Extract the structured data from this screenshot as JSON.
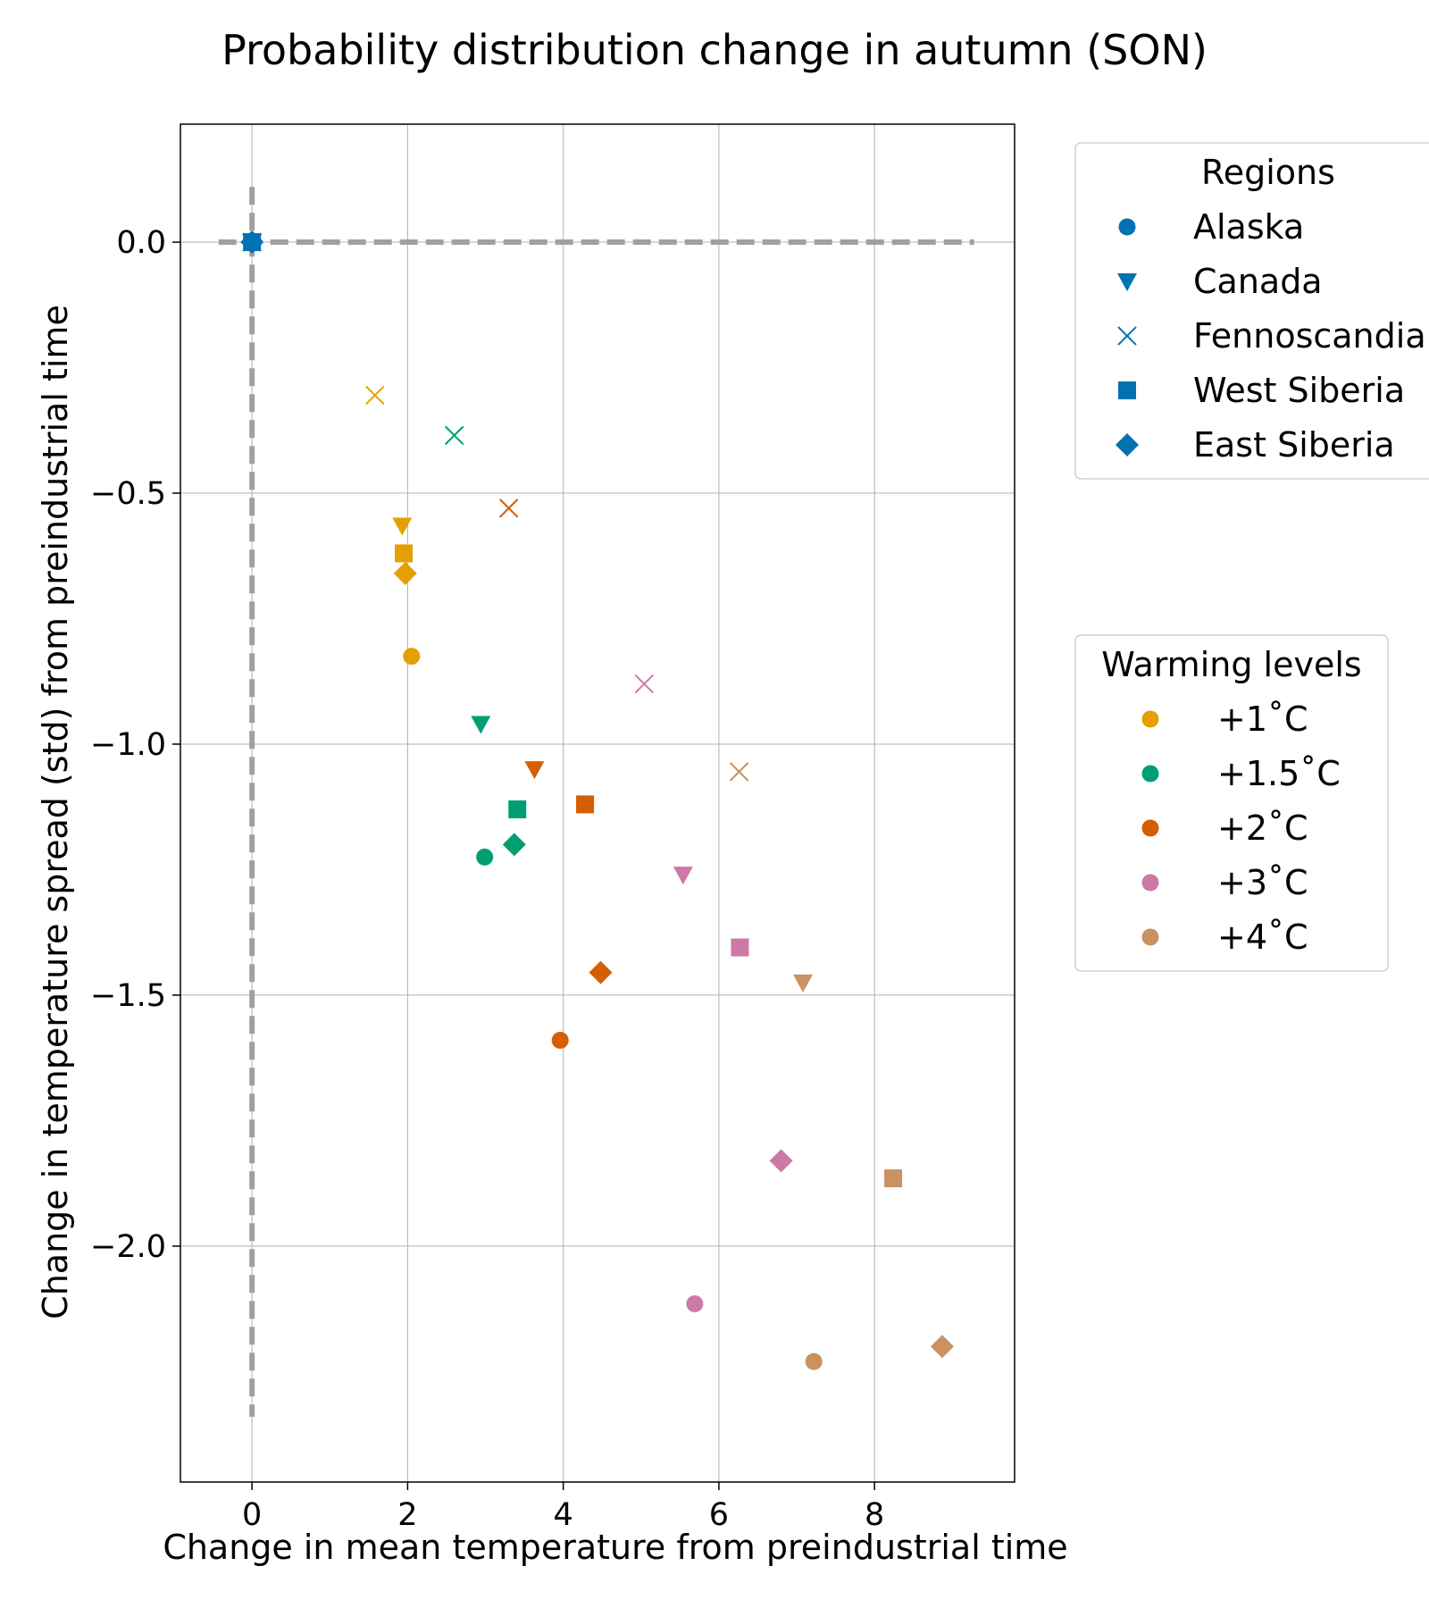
{
  "chart_data": {
    "type": "scatter",
    "title": "Probability distribution change in autumn (SON)",
    "xlabel": "Change in mean temperature from preindustrial time",
    "ylabel": "Change in temperature spread (std) from preindustrial time",
    "xlim": [
      -0.92,
      9.8
    ],
    "ylim": [
      -2.47,
      0.235
    ],
    "xticks": [
      0,
      2,
      4,
      6,
      8
    ],
    "yticks": [
      0.0,
      -0.5,
      -1.0,
      -1.5,
      -2.0
    ],
    "xtick_labels": [
      "0",
      "2",
      "4",
      "6",
      "8"
    ],
    "ytick_labels": [
      "0.0",
      "−0.5",
      "−1.0",
      "−1.5",
      "−2.0"
    ],
    "grid": true,
    "reference_lines": {
      "x": 0,
      "y": 0,
      "style": "dashed",
      "color": "#a0a0a0"
    },
    "regions_legend": {
      "title": "Regions",
      "placement": "upper-right-outside",
      "color": "#0072b2",
      "entries": [
        {
          "name": "Alaska",
          "marker": "circle"
        },
        {
          "name": "Canada",
          "marker": "triangle-down"
        },
        {
          "name": "Fennoscandia",
          "marker": "x"
        },
        {
          "name": "West Siberia",
          "marker": "square"
        },
        {
          "name": "East Siberia",
          "marker": "diamond"
        }
      ]
    },
    "levels_legend": {
      "title": "Warming levels",
      "placement": "middle-right-outside",
      "entries": [
        {
          "name": "+1˚C",
          "color": "#e69f00"
        },
        {
          "name": "+1.5˚C",
          "color": "#009e73"
        },
        {
          "name": "+2˚C",
          "color": "#d55e00"
        },
        {
          "name": "+3˚C",
          "color": "#cc79a7"
        },
        {
          "name": "+4˚C",
          "color": "#ca9161"
        }
      ]
    },
    "baseline": {
      "x": 0,
      "y": 0,
      "color": "#0072b2"
    },
    "series": [
      {
        "level": "+1˚C",
        "color": "#e69f00",
        "points": [
          {
            "region": "Alaska",
            "x": 2.05,
            "y": -0.825
          },
          {
            "region": "Canada",
            "x": 1.93,
            "y": -0.565
          },
          {
            "region": "Fennoscandia",
            "x": 1.58,
            "y": -0.305
          },
          {
            "region": "West Siberia",
            "x": 1.95,
            "y": -0.62
          },
          {
            "region": "East Siberia",
            "x": 1.97,
            "y": -0.66
          }
        ]
      },
      {
        "level": "+1.5˚C",
        "color": "#009e73",
        "points": [
          {
            "region": "Alaska",
            "x": 2.99,
            "y": -1.225
          },
          {
            "region": "Canada",
            "x": 2.94,
            "y": -0.96
          },
          {
            "region": "Fennoscandia",
            "x": 2.6,
            "y": -0.385
          },
          {
            "region": "West Siberia",
            "x": 3.41,
            "y": -1.13
          },
          {
            "region": "East Siberia",
            "x": 3.37,
            "y": -1.2
          }
        ]
      },
      {
        "level": "+2˚C",
        "color": "#d55e00",
        "points": [
          {
            "region": "Alaska",
            "x": 3.96,
            "y": -1.59
          },
          {
            "region": "Canada",
            "x": 3.63,
            "y": -1.05
          },
          {
            "region": "Fennoscandia",
            "x": 3.3,
            "y": -0.53
          },
          {
            "region": "West Siberia",
            "x": 4.28,
            "y": -1.12
          },
          {
            "region": "East Siberia",
            "x": 4.48,
            "y": -1.455
          }
        ]
      },
      {
        "level": "+3˚C",
        "color": "#cc79a7",
        "points": [
          {
            "region": "Alaska",
            "x": 5.69,
            "y": -2.115
          },
          {
            "region": "Canada",
            "x": 5.54,
            "y": -1.26
          },
          {
            "region": "Fennoscandia",
            "x": 5.04,
            "y": -0.88
          },
          {
            "region": "West Siberia",
            "x": 6.27,
            "y": -1.405
          },
          {
            "region": "East Siberia",
            "x": 6.8,
            "y": -1.83
          }
        ]
      },
      {
        "level": "+4˚C",
        "color": "#ca9161",
        "points": [
          {
            "region": "Alaska",
            "x": 7.22,
            "y": -2.23
          },
          {
            "region": "Canada",
            "x": 7.08,
            "y": -1.475
          },
          {
            "region": "Fennoscandia",
            "x": 6.26,
            "y": -1.055
          },
          {
            "region": "West Siberia",
            "x": 8.24,
            "y": -1.865
          },
          {
            "region": "East Siberia",
            "x": 8.87,
            "y": -2.2
          }
        ]
      }
    ]
  }
}
